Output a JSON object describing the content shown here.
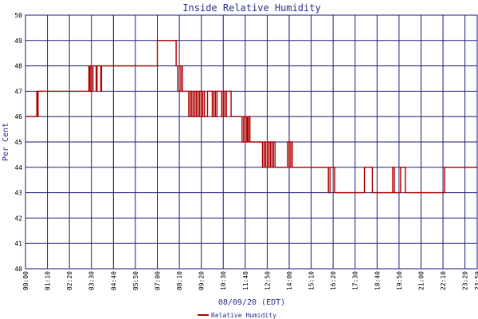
{
  "chart_data": {
    "type": "line",
    "title": "Inside Relative Humidity",
    "xlabel": "08/09/20 (EDT)",
    "ylabel": "Per Cent",
    "ylim": [
      40,
      50
    ],
    "yticks": [
      "40",
      "41",
      "42",
      "43",
      "44",
      "45",
      "46",
      "47",
      "48",
      "49",
      "50"
    ],
    "xlim": [
      "00:00",
      "23:59"
    ],
    "xticks": [
      "00:00",
      "01:10",
      "02:20",
      "03:30",
      "04:40",
      "05:50",
      "07:00",
      "08:10",
      "09:20",
      "10:30",
      "11:40",
      "12:50",
      "14:00",
      "15:10",
      "16:20",
      "17:30",
      "18:40",
      "19:50",
      "21:00",
      "22:10",
      "23:20",
      "23:59"
    ],
    "grid": true,
    "legend_position": "bottom-center",
    "series": [
      {
        "name": "Relative Humidity",
        "color": "#b00000",
        "points": [
          [
            "00:00",
            46
          ],
          [
            "00:35",
            46
          ],
          [
            "00:36",
            47
          ],
          [
            "00:38",
            46
          ],
          [
            "00:40",
            47
          ],
          [
            "01:30",
            47
          ],
          [
            "03:20",
            47
          ],
          [
            "03:22",
            48
          ],
          [
            "03:24",
            47
          ],
          [
            "03:28",
            48
          ],
          [
            "03:30",
            47
          ],
          [
            "03:35",
            48
          ],
          [
            "03:40",
            48
          ],
          [
            "03:45",
            47
          ],
          [
            "03:48",
            48
          ],
          [
            "03:55",
            48
          ],
          [
            "04:00",
            47
          ],
          [
            "04:02",
            48
          ],
          [
            "04:40",
            48
          ],
          [
            "05:50",
            48
          ],
          [
            "06:55",
            48
          ],
          [
            "07:00",
            49
          ],
          [
            "07:55",
            49
          ],
          [
            "08:00",
            48
          ],
          [
            "08:05",
            47
          ],
          [
            "08:15",
            48
          ],
          [
            "08:20",
            47
          ],
          [
            "08:35",
            47
          ],
          [
            "08:40",
            46
          ],
          [
            "08:45",
            47
          ],
          [
            "08:50",
            46
          ],
          [
            "08:55",
            47
          ],
          [
            "09:00",
            46
          ],
          [
            "09:05",
            47
          ],
          [
            "09:10",
            46
          ],
          [
            "09:15",
            47
          ],
          [
            "09:20",
            46
          ],
          [
            "09:25",
            47
          ],
          [
            "09:30",
            46
          ],
          [
            "09:40",
            47
          ],
          [
            "09:50",
            47
          ],
          [
            "09:55",
            46
          ],
          [
            "10:00",
            47
          ],
          [
            "10:05",
            46
          ],
          [
            "10:10",
            47
          ],
          [
            "10:20",
            47
          ],
          [
            "10:25",
            46
          ],
          [
            "10:30",
            47
          ],
          [
            "10:35",
            46
          ],
          [
            "10:40",
            47
          ],
          [
            "10:50",
            47
          ],
          [
            "10:55",
            46
          ],
          [
            "11:25",
            46
          ],
          [
            "11:30",
            45
          ],
          [
            "11:35",
            46
          ],
          [
            "11:40",
            45
          ],
          [
            "11:45",
            46
          ],
          [
            "11:48",
            45
          ],
          [
            "11:50",
            46
          ],
          [
            "11:55",
            45
          ],
          [
            "12:30",
            45
          ],
          [
            "12:35",
            44
          ],
          [
            "12:40",
            45
          ],
          [
            "12:45",
            44
          ],
          [
            "12:50",
            45
          ],
          [
            "12:55",
            44
          ],
          [
            "13:00",
            45
          ],
          [
            "13:05",
            44
          ],
          [
            "13:10",
            45
          ],
          [
            "13:15",
            44
          ],
          [
            "13:50",
            44
          ],
          [
            "13:55",
            45
          ],
          [
            "14:00",
            44
          ],
          [
            "14:05",
            45
          ],
          [
            "14:10",
            44
          ],
          [
            "16:00",
            44
          ],
          [
            "16:05",
            43
          ],
          [
            "16:10",
            44
          ],
          [
            "16:15",
            44
          ],
          [
            "16:25",
            43
          ],
          [
            "17:00",
            43
          ],
          [
            "17:30",
            43
          ],
          [
            "17:55",
            43
          ],
          [
            "18:00",
            44
          ],
          [
            "18:20",
            44
          ],
          [
            "18:25",
            43
          ],
          [
            "19:20",
            43
          ],
          [
            "19:30",
            44
          ],
          [
            "19:35",
            43
          ],
          [
            "19:50",
            43
          ],
          [
            "19:55",
            44
          ],
          [
            "20:05",
            44
          ],
          [
            "20:10",
            43
          ],
          [
            "21:00",
            43
          ],
          [
            "22:00",
            43
          ],
          [
            "22:10",
            43
          ],
          [
            "22:15",
            44
          ],
          [
            "23:59",
            44
          ]
        ]
      }
    ]
  }
}
